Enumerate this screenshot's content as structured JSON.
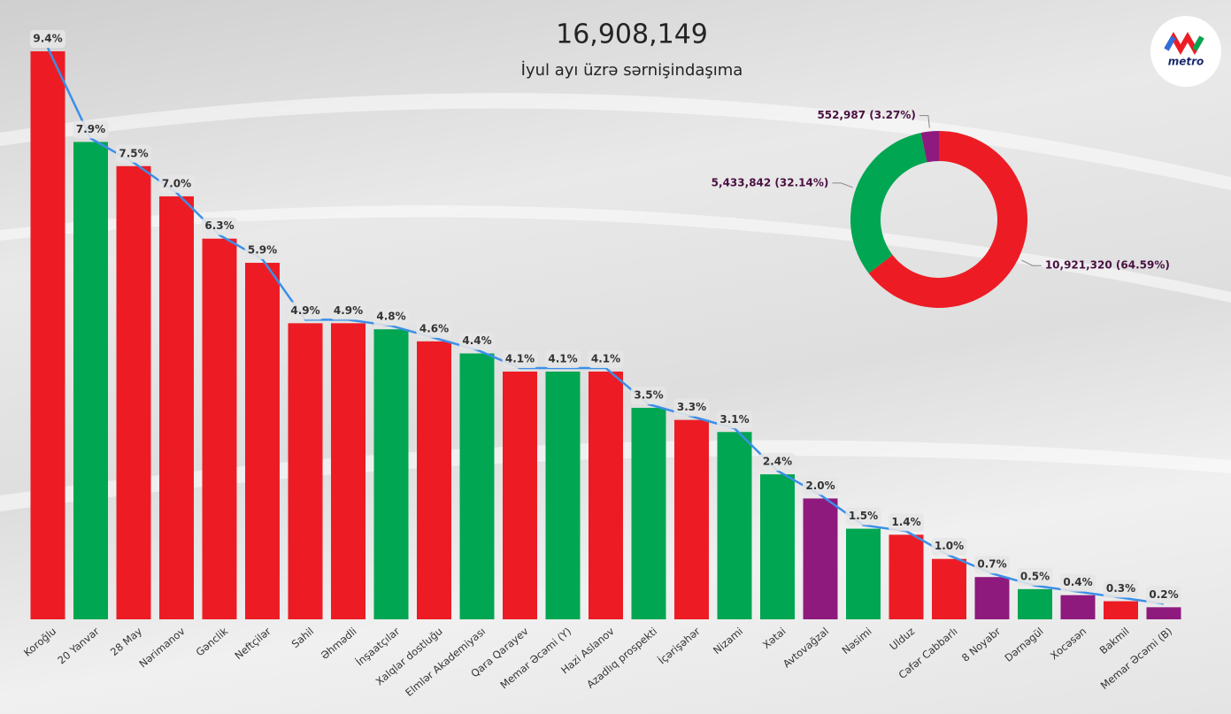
{
  "logo": "metro",
  "chart_data": [
    {
      "type": "bar",
      "title": "16,908,149",
      "subtitle": "İyul ayı üzrə sərnişindaşıma",
      "categories": [
        "Koroğlu",
        "20 Yanvar",
        "28 May",
        "Nərimanov",
        "Gənclik",
        "Neftçilər",
        "Sahil",
        "Əhmədli",
        "İnşaatçılar",
        "Xalqlar dostluğu",
        "Elmlər Akademiyası",
        "Qara Qarayev",
        "Memar Əcəmi (Y)",
        "Hazi Aslanov",
        "Azadlıq prospekti",
        "İçərişəhər",
        "Nizami",
        "Xətai",
        "Avtovağzal",
        "Nəsimi",
        "Ulduz",
        "Cəfər Cabbarlı",
        "8 Noyabr",
        "Dərnəgül",
        "Xocəsən",
        "Bakmil",
        "Memar Əcəmi (B)"
      ],
      "values": [
        9.4,
        7.9,
        7.5,
        7.0,
        6.3,
        5.9,
        4.9,
        4.9,
        4.8,
        4.6,
        4.4,
        4.1,
        4.1,
        4.1,
        3.5,
        3.3,
        3.1,
        2.4,
        2.0,
        1.5,
        1.4,
        1.0,
        0.7,
        0.5,
        0.4,
        0.3,
        0.2
      ],
      "value_labels": [
        "9.4%",
        "7.9%",
        "7.5%",
        "7.0%",
        "6.3%",
        "5.9%",
        "4.9%",
        "4.9%",
        "4.8%",
        "4.6%",
        "4.4%",
        "4.1%",
        "4.1%",
        "4.1%",
        "3.5%",
        "3.3%",
        "3.1%",
        "2.4%",
        "2.0%",
        "1.5%",
        "1.4%",
        "1.0%",
        "0.7%",
        "0.5%",
        "0.4%",
        "0.3%",
        "0.2%"
      ],
      "colors": [
        "#ed1c24",
        "#00a651",
        "#ed1c24",
        "#ed1c24",
        "#ed1c24",
        "#ed1c24",
        "#ed1c24",
        "#ed1c24",
        "#00a651",
        "#ed1c24",
        "#00a651",
        "#ed1c24",
        "#00a651",
        "#ed1c24",
        "#00a651",
        "#ed1c24",
        "#00a651",
        "#00a651",
        "#8e1a7e",
        "#00a651",
        "#ed1c24",
        "#ed1c24",
        "#8e1a7e",
        "#00a651",
        "#8e1a7e",
        "#ed1c24",
        "#8e1a7e"
      ],
      "line_color": "#3b8fe8"
    },
    {
      "type": "donut",
      "values": [
        10921320,
        5433842,
        552987
      ],
      "value_labels": [
        "10,921,320 (64.59%)",
        "5,433,842 (32.14%)",
        "552,987 (3.27%)"
      ],
      "colors": [
        "#ed1c24",
        "#00a651",
        "#8e1a7e"
      ]
    }
  ]
}
